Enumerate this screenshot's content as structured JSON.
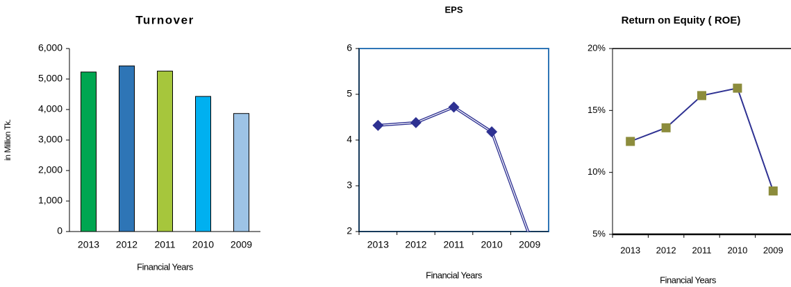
{
  "chart_data": [
    {
      "type": "bar",
      "title": "Turnover",
      "y_label": "in Million Tk.",
      "x_label": "Financial Years",
      "categories": [
        "2013",
        "2012",
        "2011",
        "2010",
        "2009"
      ],
      "values": [
        5230,
        5430,
        5260,
        4430,
        3870
      ],
      "colors": [
        "#00a651",
        "#2e75b6",
        "#a6c63c",
        "#00b0f0",
        "#9dc3e6"
      ],
      "ylim": [
        0,
        6000
      ],
      "yticks": [
        0,
        {
          "value": 1000,
          "label": "1,000"
        },
        {
          "value": 2000,
          "label": "2,000"
        },
        {
          "value": 3000,
          "label": "3,000"
        },
        {
          "value": 4000,
          "label": "4,000"
        },
        {
          "value": 5000,
          "label": "5,000"
        },
        {
          "value": 6000,
          "label": "6,000"
        }
      ]
    },
    {
      "type": "line",
      "title": "EPS",
      "x_label": "Financial Years",
      "categories": [
        "2013",
        "2012",
        "2011",
        "2010",
        "2009"
      ],
      "values": [
        4.32,
        4.38,
        4.72,
        4.18,
        1.9
      ],
      "color": "#2e3192",
      "marker_color": "#2e3192",
      "ylim": [
        2,
        6
      ],
      "yticks": [
        2,
        3,
        4,
        5,
        6
      ]
    },
    {
      "type": "line",
      "title": "Return on Equity ( ROE)",
      "x_label": "Financial Years",
      "categories": [
        "2013",
        "2012",
        "2011",
        "2010",
        "2009"
      ],
      "values": [
        12.5,
        13.6,
        16.2,
        16.8,
        8.5
      ],
      "color": "#2e3192",
      "marker_color": "#8c8c3c",
      "ylim": [
        5,
        20
      ],
      "yticks": [
        {
          "value": 5,
          "label": "5%"
        },
        {
          "value": 10,
          "label": "10%"
        },
        {
          "value": 15,
          "label": "15%"
        },
        {
          "value": 20,
          "label": "20%"
        }
      ]
    }
  ]
}
